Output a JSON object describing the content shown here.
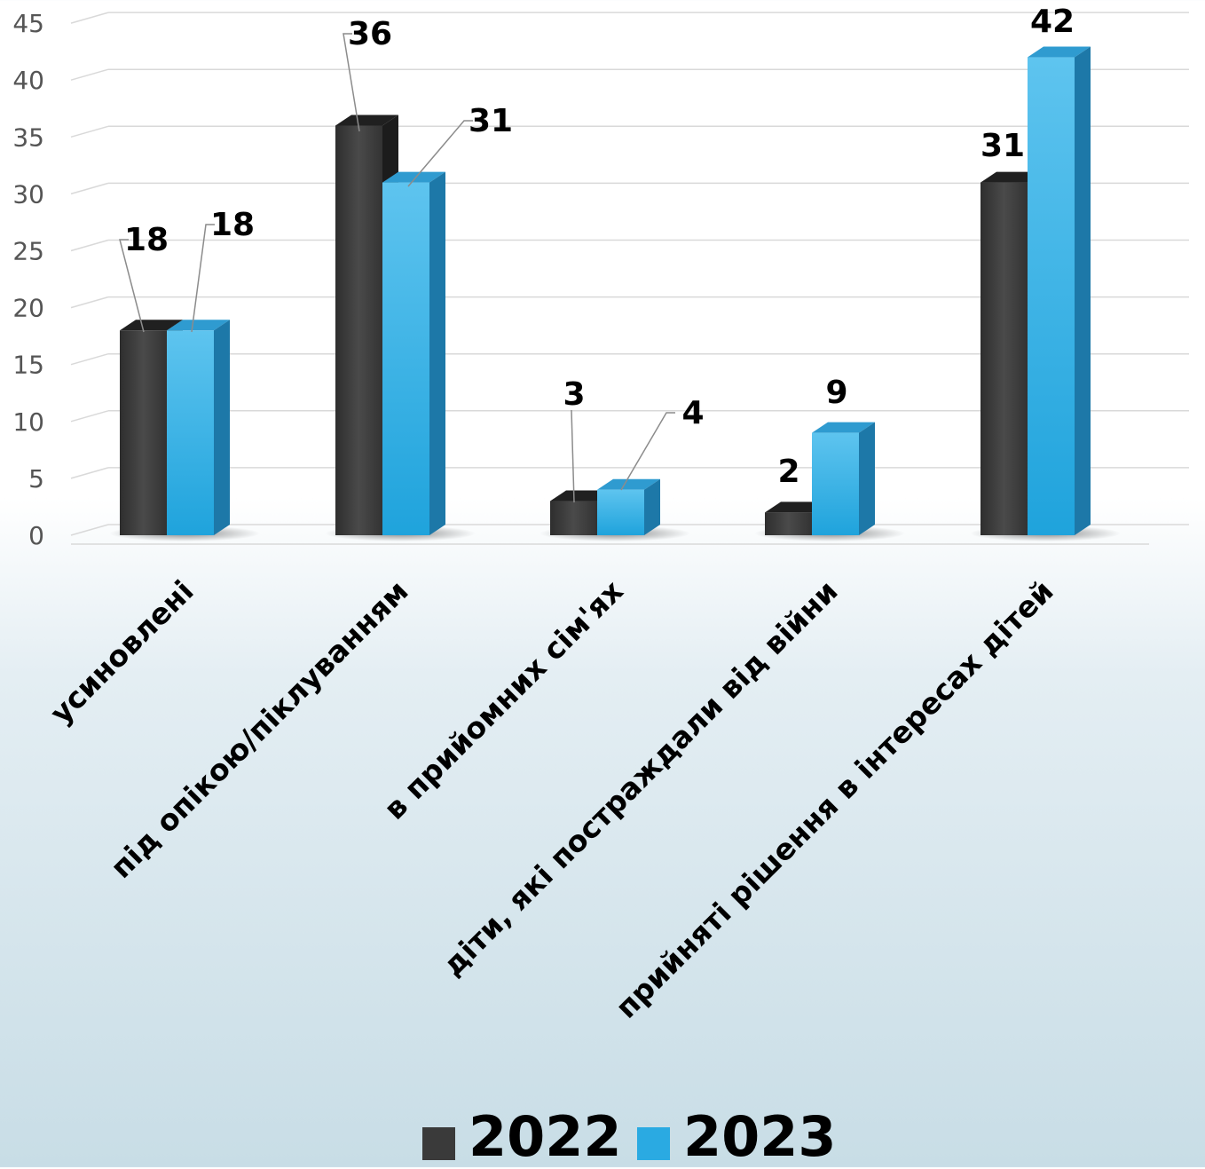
{
  "chart_data": {
    "type": "bar",
    "categories": [
      "усиновлені",
      "під опікою/піклуванням",
      "в прийомних сім'ях",
      "діти, які постраждали від війни",
      "прийняті рішення в інтересах дітей"
    ],
    "series": [
      {
        "name": "2022",
        "values": [
          18,
          36,
          3,
          2,
          31
        ],
        "color": "#3a3a3a"
      },
      {
        "name": "2023",
        "values": [
          18,
          31,
          4,
          9,
          42
        ],
        "color": "#2aaae2"
      }
    ],
    "ylim": [
      0,
      45
    ],
    "yticks": [
      "0",
      "5",
      "10",
      "15",
      "20",
      "25",
      "30",
      "35",
      "40",
      "45"
    ],
    "grid": true,
    "legend": "bottom"
  }
}
